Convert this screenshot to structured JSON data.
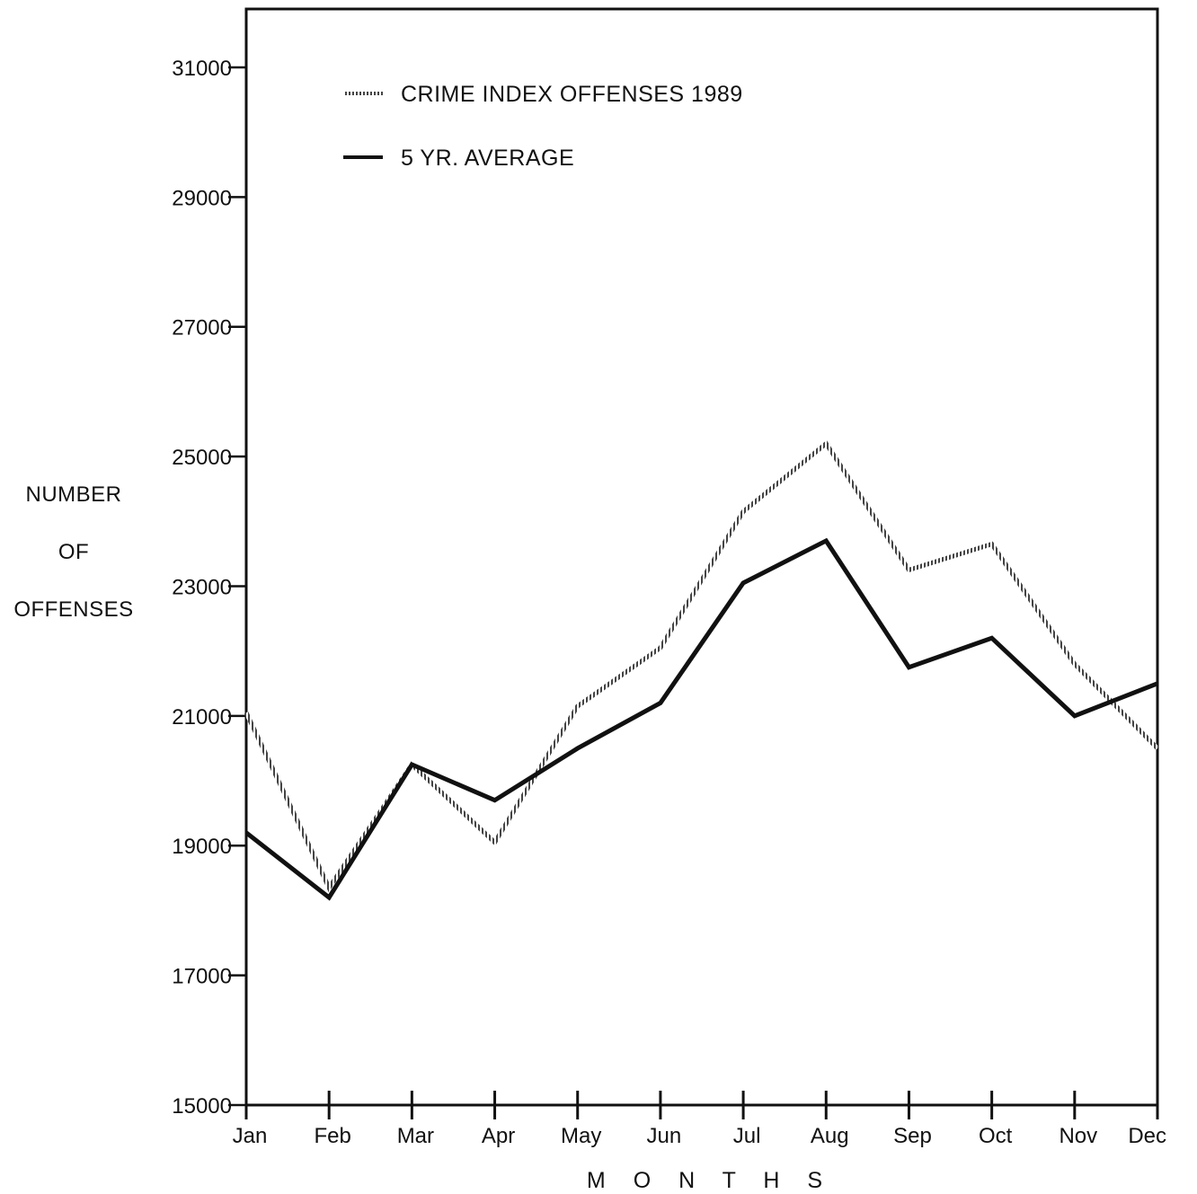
{
  "chart_data": {
    "type": "line",
    "title": "",
    "xlabel": "M O N T H S",
    "ylabel": [
      "NUMBER",
      "OF",
      "OFFENSES"
    ],
    "categories": [
      "Jan",
      "Feb",
      "Mar",
      "Apr",
      "May",
      "Jun",
      "Jul",
      "Aug",
      "Sep",
      "Oct",
      "Nov",
      "Dec"
    ],
    "yticks": [
      "31000",
      "29000",
      "27000",
      "25000",
      "23000",
      "21000",
      "19000",
      "17000",
      "15000"
    ],
    "ylim": [
      15000,
      31900
    ],
    "grid": false,
    "legend_position": "top-left",
    "series": [
      {
        "name": "CRIME INDEX OFFENSES 1989",
        "style": "hatched",
        "color": "#555555",
        "values": [
          21050,
          18350,
          20250,
          19050,
          21150,
          22050,
          24150,
          25200,
          23250,
          23650,
          21800,
          20500
        ]
      },
      {
        "name": "5 YR. AVERAGE",
        "style": "solid",
        "color": "#111111",
        "values": [
          19200,
          18200,
          20250,
          19700,
          20500,
          21200,
          23050,
          23700,
          21750,
          22200,
          21000,
          21500
        ]
      }
    ]
  }
}
